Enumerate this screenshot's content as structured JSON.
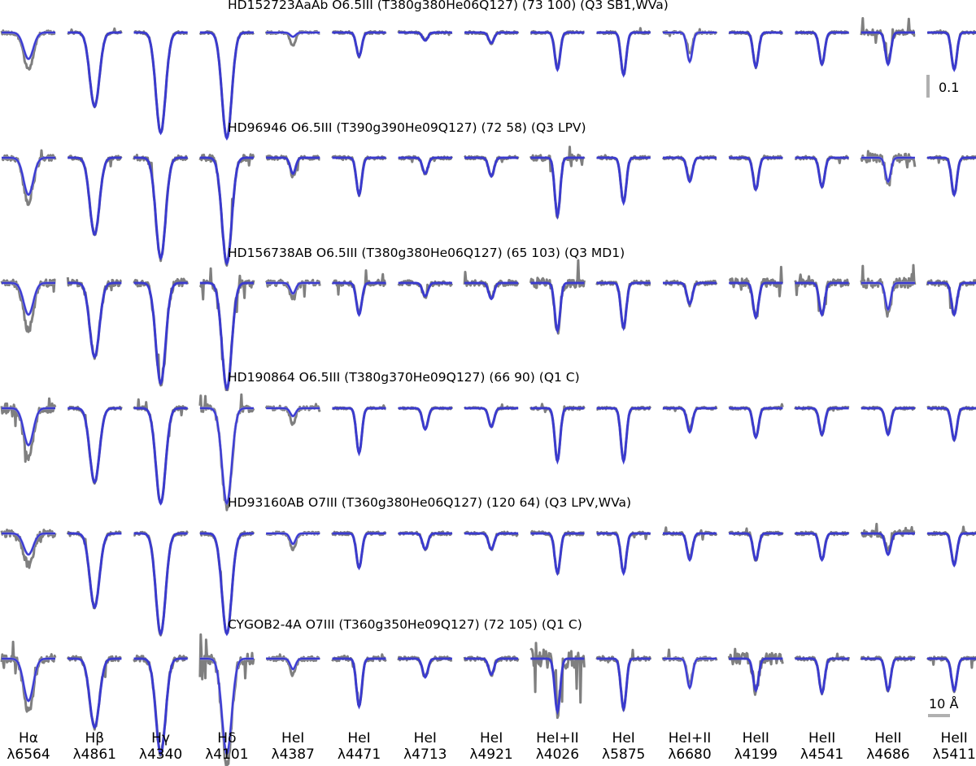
{
  "chart_data": {
    "type": "line",
    "rows": [
      {
        "title": "HD152723AaAb O6.5III (T380g380He06Q127) (73 100) (Q3 SB1,WVa)",
        "obs": [
          0.07,
          0.14,
          0.19,
          0.2,
          0.025,
          0.045,
          0.015,
          0.02,
          0.065,
          0.08,
          0.04,
          0.065,
          0.06,
          0.055,
          0.07
        ],
        "fit": [
          0.05,
          0.14,
          0.19,
          0.2,
          0.008,
          0.045,
          0.015,
          0.02,
          0.07,
          0.08,
          0.055,
          0.065,
          0.06,
          0.06,
          0.07
        ],
        "noise": [
          0.6,
          0.4,
          0.4,
          0.4,
          0.4,
          0.4,
          0.4,
          0.4,
          0.4,
          0.4,
          0.4,
          0.4,
          0.4,
          1.0,
          0.4
        ]
      },
      {
        "title": "HD96946 O6.5III (T390g390He09Q127) (72 58) (Q3 LPV)",
        "obs": [
          0.085,
          0.145,
          0.19,
          0.2,
          0.035,
          0.07,
          0.03,
          0.035,
          0.11,
          0.085,
          0.04,
          0.06,
          0.055,
          0.055,
          0.07
        ],
        "fit": [
          0.07,
          0.145,
          0.19,
          0.2,
          0.03,
          0.07,
          0.03,
          0.035,
          0.11,
          0.085,
          0.045,
          0.06,
          0.055,
          0.045,
          0.07
        ],
        "noise": [
          1.0,
          0.6,
          0.9,
          1.1,
          0.6,
          0.5,
          0.5,
          0.5,
          1.0,
          0.5,
          0.5,
          0.5,
          0.5,
          1.4,
          0.5
        ]
      },
      {
        "title": "HD156738AB O6.5III (T380g380He06Q127) (65 103) (Q3 MD1)",
        "obs": [
          0.09,
          0.14,
          0.19,
          0.2,
          0.03,
          0.06,
          0.025,
          0.03,
          0.09,
          0.085,
          0.04,
          0.065,
          0.06,
          0.06,
          0.06
        ],
        "fit": [
          0.06,
          0.14,
          0.19,
          0.2,
          0.02,
          0.06,
          0.025,
          0.03,
          0.09,
          0.085,
          0.04,
          0.065,
          0.06,
          0.05,
          0.06
        ],
        "noise": [
          1.2,
          1.0,
          1.4,
          1.4,
          1.0,
          0.9,
          0.9,
          0.9,
          1.6,
          0.7,
          0.7,
          1.4,
          1.1,
          1.6,
          0.9
        ]
      },
      {
        "title": "HD190864 O6.5III (T380g370He09Q127) (66 90) (Q1 C)",
        "obs": [
          0.09,
          0.14,
          0.18,
          0.19,
          0.03,
          0.085,
          0.04,
          0.035,
          0.1,
          0.1,
          0.04,
          0.055,
          0.05,
          0.045,
          0.06
        ],
        "fit": [
          0.07,
          0.14,
          0.18,
          0.18,
          0.015,
          0.085,
          0.04,
          0.035,
          0.1,
          0.1,
          0.045,
          0.055,
          0.05,
          0.05,
          0.06
        ],
        "noise": [
          1.6,
          0.5,
          0.6,
          1.2,
          0.6,
          0.3,
          0.3,
          0.3,
          0.5,
          0.4,
          0.4,
          0.4,
          0.4,
          0.4,
          0.4
        ]
      },
      {
        "title": "HD93160AB O7III (T360g380He06Q127) (120 64) (Q3 LPV,WVa)",
        "obs": [
          0.06,
          0.14,
          0.19,
          0.19,
          0.03,
          0.065,
          0.03,
          0.03,
          0.075,
          0.075,
          0.045,
          0.05,
          0.05,
          0.035,
          0.06
        ],
        "fit": [
          0.04,
          0.14,
          0.19,
          0.19,
          0.02,
          0.065,
          0.03,
          0.03,
          0.075,
          0.075,
          0.05,
          0.05,
          0.05,
          0.04,
          0.06
        ],
        "noise": [
          1.2,
          0.6,
          0.6,
          0.6,
          0.5,
          0.5,
          0.5,
          0.5,
          0.6,
          0.5,
          0.5,
          0.5,
          0.5,
          1.0,
          0.5
        ]
      },
      {
        "title": "CYGOB2-4A O7III (T360g350He09Q127) (72 105) (Q1 C)",
        "obs": [
          0.1,
          0.13,
          0.18,
          0.2,
          0.03,
          0.09,
          0.035,
          0.03,
          0.1,
          0.095,
          0.045,
          0.06,
          0.065,
          0.06,
          0.06
        ],
        "fit": [
          0.08,
          0.13,
          0.18,
          0.18,
          0.02,
          0.09,
          0.035,
          0.03,
          0.1,
          0.095,
          0.055,
          0.06,
          0.065,
          0.06,
          0.06
        ],
        "noise": [
          1.4,
          0.8,
          1.0,
          1.8,
          0.7,
          0.8,
          0.6,
          0.6,
          3.0,
          0.6,
          0.6,
          1.8,
          0.6,
          0.6,
          0.6
        ]
      }
    ],
    "lines": [
      {
        "name": "Hα",
        "wavelength": "λ6564"
      },
      {
        "name": "Hβ",
        "wavelength": "λ4861"
      },
      {
        "name": "Hγ",
        "wavelength": "λ4340"
      },
      {
        "name": "Hδ",
        "wavelength": "λ4101"
      },
      {
        "name": "HeI",
        "wavelength": "λ4387"
      },
      {
        "name": "HeI",
        "wavelength": "λ4471"
      },
      {
        "name": "HeI",
        "wavelength": "λ4713"
      },
      {
        "name": "HeI",
        "wavelength": "λ4921"
      },
      {
        "name": "HeI+II",
        "wavelength": "λ4026"
      },
      {
        "name": "HeI",
        "wavelength": "λ5875"
      },
      {
        "name": "HeI+II",
        "wavelength": "λ6680"
      },
      {
        "name": "HeII",
        "wavelength": "λ4199"
      },
      {
        "name": "HeII",
        "wavelength": "λ4541"
      },
      {
        "name": "HeII",
        "wavelength": "λ4686"
      },
      {
        "name": "HeII",
        "wavelength": "λ5411"
      }
    ],
    "flux_scale_label": "0.1",
    "wavelength_scale_label": "10 Å",
    "colors": {
      "observed": "#7f7f7f",
      "fit": "#3a3acf",
      "fit_light": "#8080f0",
      "scalebar": "#b0b0b0"
    }
  }
}
